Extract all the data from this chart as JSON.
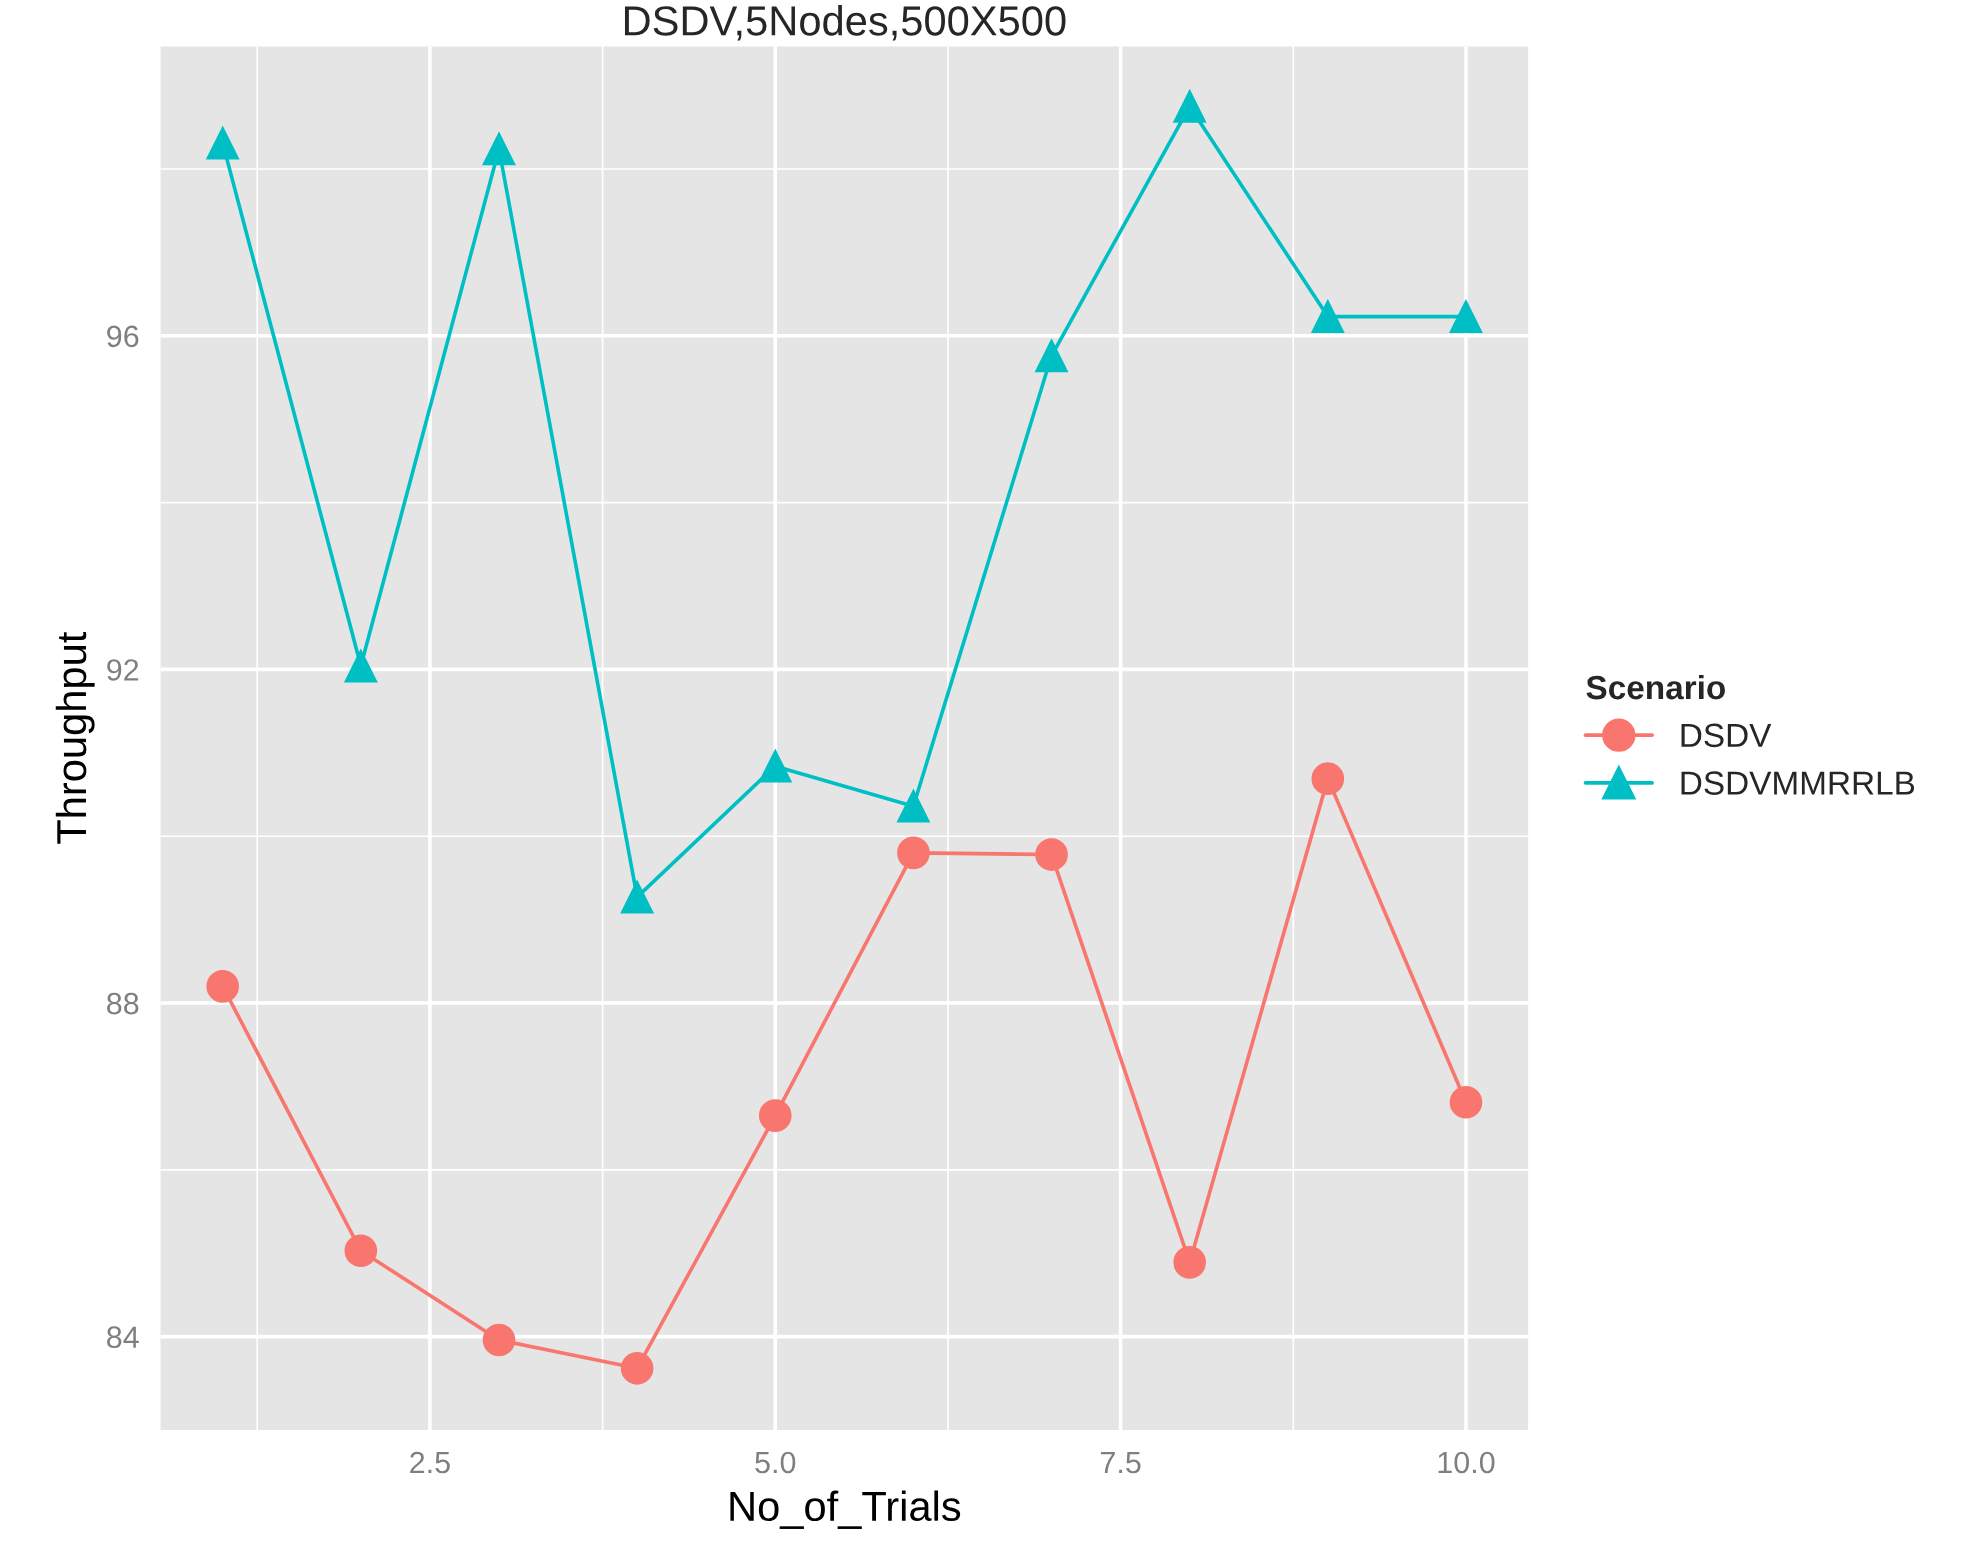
{
  "chart_data": {
    "type": "line",
    "title": "DSDV,5Nodes,500X500",
    "xlabel": "No_of_Trials",
    "ylabel": "Throughput",
    "legend_title": "Scenario",
    "x": [
      1,
      2,
      3,
      4,
      5,
      6,
      7,
      8,
      9,
      10
    ],
    "series": [
      {
        "name": "DSDV",
        "color": "#f8766d",
        "marker": "circle",
        "values": [
          88.2,
          85.03,
          83.96,
          83.62,
          86.65,
          89.8,
          89.78,
          84.89,
          90.69,
          86.81
        ]
      },
      {
        "name": "DSDVMMRRLB",
        "color": "#00bfc4",
        "marker": "triangle",
        "values": [
          98.31,
          92.04,
          98.24,
          89.27,
          90.84,
          90.36,
          95.76,
          98.75,
          96.23,
          96.23
        ]
      }
    ],
    "xlim": [
      0.55,
      10.45
    ],
    "xticks": [
      {
        "value": 2.5,
        "label": "2.5"
      },
      {
        "value": 5,
        "label": "5.0"
      },
      {
        "value": 7.5,
        "label": "7.5"
      },
      {
        "value": 10,
        "label": "10.0"
      }
    ],
    "ylim": [
      82.88,
      99.47
    ],
    "yticks": [
      84,
      88,
      92,
      96
    ],
    "grid": true,
    "legend": "right",
    "line_style": "solid"
  }
}
